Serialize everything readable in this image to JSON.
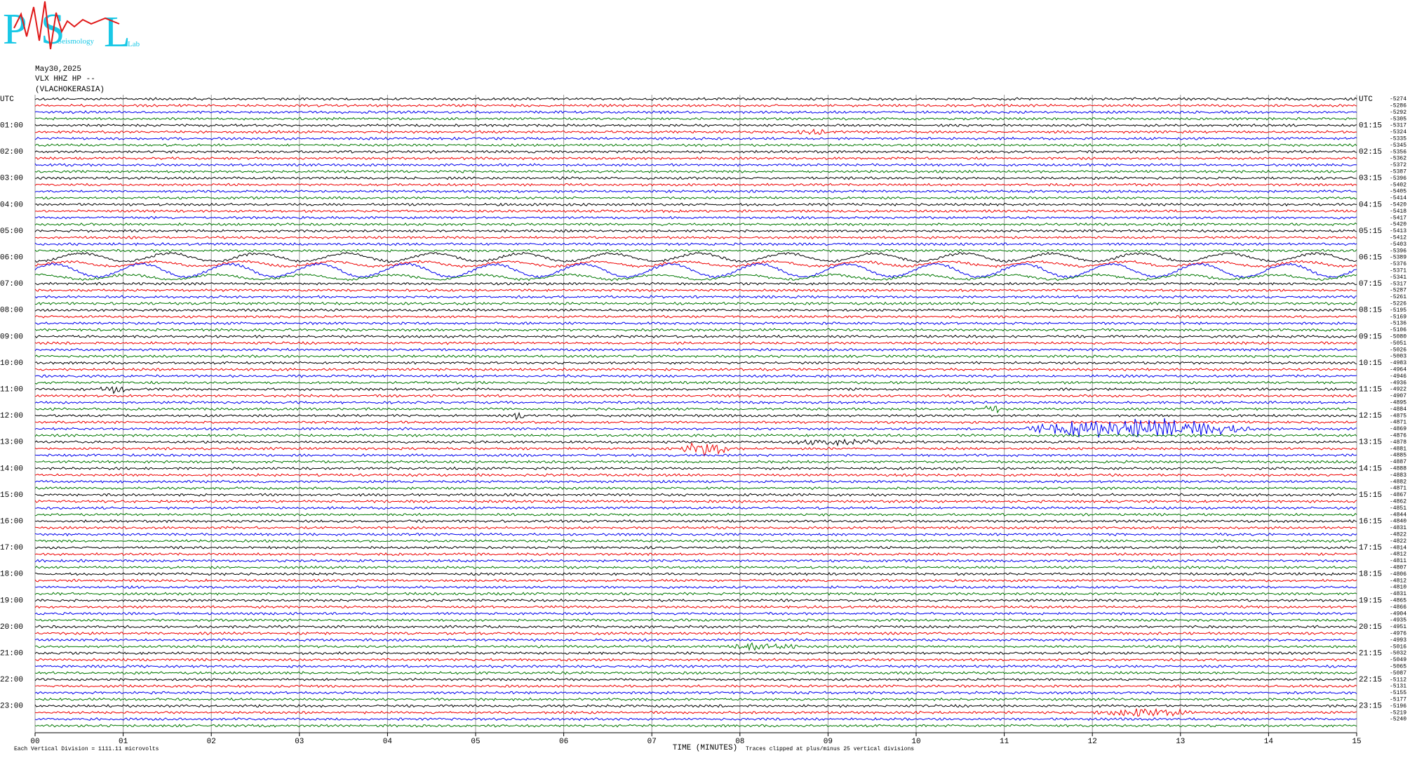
{
  "logo": {
    "letters": [
      "P",
      "S",
      "L"
    ],
    "sub": [
      "Seismology",
      "Lab"
    ]
  },
  "header": {
    "date": "May30,2025",
    "station": "VLX HHZ HP --",
    "location": "(VLACHOKERASIA)"
  },
  "left_labels": [
    "UTC",
    "01:00",
    "02:00",
    "03:00",
    "04:00",
    "05:00",
    "06:00",
    "07:00",
    "08:00",
    "09:00",
    "10:00",
    "11:00",
    "12:00",
    "13:00",
    "14:00",
    "15:00",
    "16:00",
    "17:00",
    "18:00",
    "19:00",
    "20:00",
    "21:00",
    "22:00",
    "23:00"
  ],
  "right_labels": [
    "UTC",
    "01:15",
    "02:15",
    "03:15",
    "04:15",
    "05:15",
    "06:15",
    "07:15",
    "08:15",
    "09:15",
    "10:15",
    "11:15",
    "12:15",
    "13:15",
    "14:15",
    "15:15",
    "16:15",
    "17:15",
    "18:15",
    "19:15",
    "20:15",
    "21:15",
    "22:15",
    "23:15"
  ],
  "offsets": [
    "-5274",
    "-5286",
    "-5292",
    "-5305",
    "-5317",
    "-5324",
    "-5335",
    "-5345",
    "-5356",
    "-5362",
    "-5372",
    "-5387",
    "-5396",
    "-5402",
    "-5405",
    "-5414",
    "-5420",
    "-5418",
    "-5417",
    "-5420",
    "-5413",
    "-5412",
    "-5403",
    "-5396",
    "-5389",
    "-5376",
    "-5371",
    "-5341",
    "-5317",
    "-5287",
    "-5261",
    "-5226",
    "-5195",
    "-5169",
    "-5136",
    "-5106",
    "-5080",
    "-5051",
    "-5026",
    "-5003",
    "-4983",
    "-4964",
    "-4946",
    "-4936",
    "-4922",
    "-4907",
    "-4895",
    "-4884",
    "-4875",
    "-4871",
    "-4869",
    "-4876",
    "-4878",
    "-4881",
    "-4885",
    "-4887",
    "-4888",
    "-4883",
    "-4882",
    "-4871",
    "-4867",
    "-4862",
    "-4851",
    "-4844",
    "-4840",
    "-4831",
    "-4822",
    "-4822",
    "-4814",
    "-4812",
    "-4811",
    "-4807",
    "-4806",
    "-4812",
    "-4810",
    "-4831",
    "-4865",
    "-4866",
    "-4904",
    "-4935",
    "-4951",
    "-4976",
    "-4993",
    "-5016",
    "-5032",
    "-5049",
    "-5065",
    "-5087",
    "-5112",
    "-5131",
    "-5155",
    "-5177",
    "-5196",
    "-5219",
    "-5240"
  ],
  "x_ticks": [
    "00",
    "01",
    "02",
    "03",
    "04",
    "05",
    "06",
    "07",
    "08",
    "09",
    "10",
    "11",
    "12",
    "13",
    "14",
    "15"
  ],
  "x_title": "TIME (MINUTES)",
  "footer_left": "Each Vertical Division = 1111.11 microvolts",
  "footer_right": "Traces clipped at plus/minus 25 vertical divisions"
}
